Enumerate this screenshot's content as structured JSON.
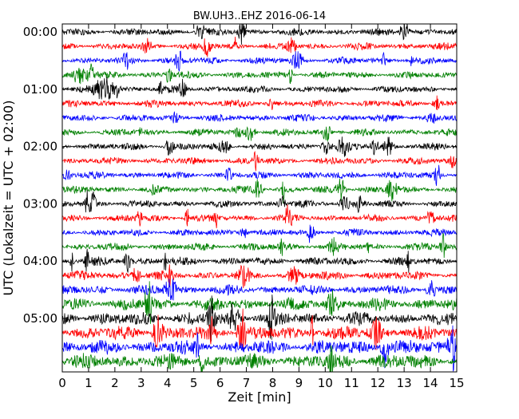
{
  "chart_data": {
    "type": "dayplot",
    "title": "BW.UH3..EHZ 2016-06-14",
    "xlabel": "Zeit  [min]",
    "ylabel": "UTC (Lokalzeit = UTC + 02:00)",
    "xlim": [
      0,
      15
    ],
    "x_ticks": [
      0,
      1,
      2,
      3,
      4,
      5,
      6,
      7,
      8,
      9,
      10,
      11,
      12,
      13,
      14,
      15
    ],
    "y_tick_labels": [
      "00:00",
      "01:00",
      "02:00",
      "03:00",
      "04:00",
      "05:00"
    ],
    "trace_interval_minutes": 15,
    "trace_count": 24,
    "trace_colors": [
      "#000000",
      "#ff0000",
      "#0000ff",
      "#008000"
    ],
    "grid": false
  }
}
